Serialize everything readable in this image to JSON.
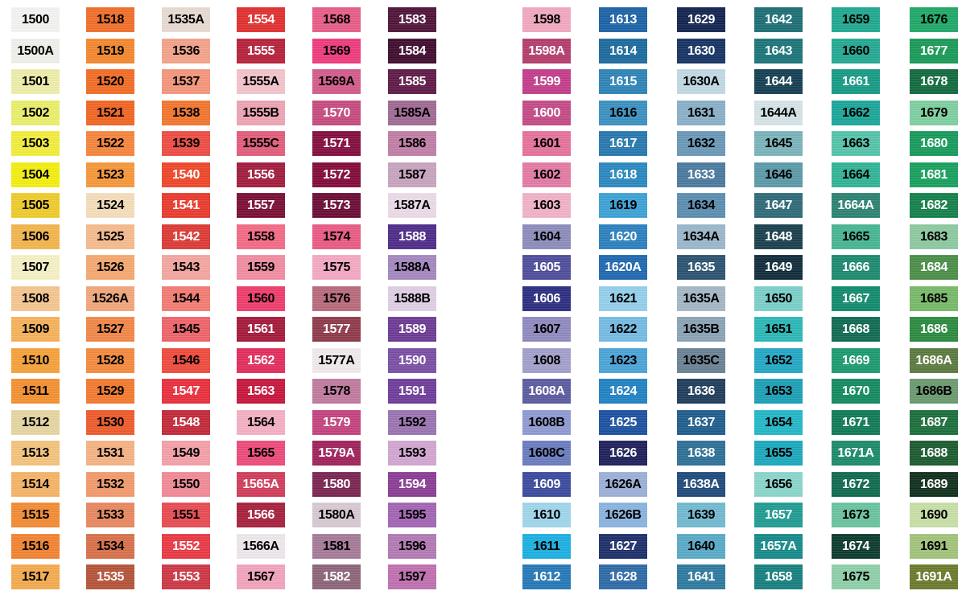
{
  "columns": [
    {
      "swatches": [
        {
          "code": "1500",
          "color": "#f4f4f2"
        },
        {
          "code": "1500A",
          "color": "#f1f1ec"
        },
        {
          "code": "1501",
          "color": "#eeeeaa"
        },
        {
          "code": "1502",
          "color": "#eaf06c"
        },
        {
          "code": "1503",
          "color": "#f2ee3c"
        },
        {
          "code": "1504",
          "color": "#f4ef0f"
        },
        {
          "code": "1505",
          "color": "#f0cc2a"
        },
        {
          "code": "1506",
          "color": "#f3b64c"
        },
        {
          "code": "1507",
          "color": "#f6f2c6"
        },
        {
          "code": "1508",
          "color": "#f6c690"
        },
        {
          "code": "1509",
          "color": "#f7b25a"
        },
        {
          "code": "1510",
          "color": "#f6a23a"
        },
        {
          "code": "1511",
          "color": "#f49130"
        },
        {
          "code": "1512",
          "color": "#e6d6a2"
        },
        {
          "code": "1513",
          "color": "#f4c47c"
        },
        {
          "code": "1514",
          "color": "#f6b466"
        },
        {
          "code": "1515",
          "color": "#f38b33"
        },
        {
          "code": "1516",
          "color": "#f38330"
        },
        {
          "code": "1517",
          "color": "#f5ab4f"
        }
      ]
    },
    {
      "swatches": [
        {
          "code": "1518",
          "color": "#f26e28"
        },
        {
          "code": "1519",
          "color": "#f4882e"
        },
        {
          "code": "1520",
          "color": "#f36c24"
        },
        {
          "code": "1521",
          "color": "#f26522"
        },
        {
          "code": "1522",
          "color": "#f7853c"
        },
        {
          "code": "1523",
          "color": "#f7973a"
        },
        {
          "code": "1524",
          "color": "#f6debb"
        },
        {
          "code": "1525",
          "color": "#f7bb8d"
        },
        {
          "code": "1526",
          "color": "#f6a870"
        },
        {
          "code": "1526A",
          "color": "#f2a77b"
        },
        {
          "code": "1527",
          "color": "#f28747"
        },
        {
          "code": "1528",
          "color": "#f48a3d"
        },
        {
          "code": "1529",
          "color": "#f47a2e"
        },
        {
          "code": "1530",
          "color": "#ef5a2a"
        },
        {
          "code": "1531",
          "color": "#f6b385"
        },
        {
          "code": "1532",
          "color": "#f39a6c"
        },
        {
          "code": "1533",
          "color": "#e88860"
        },
        {
          "code": "1534",
          "color": "#d9704a"
        },
        {
          "code": "1535",
          "color": "#b65238"
        }
      ]
    },
    {
      "swatches": [
        {
          "code": "1535A",
          "color": "#e9dbd3"
        },
        {
          "code": "1536",
          "color": "#f5a38a"
        },
        {
          "code": "1537",
          "color": "#f6967c"
        },
        {
          "code": "1538",
          "color": "#f3762e"
        },
        {
          "code": "1539",
          "color": "#ef4c44"
        },
        {
          "code": "1540",
          "color": "#ef4628"
        },
        {
          "code": "1541",
          "color": "#ea3a2c"
        },
        {
          "code": "1542",
          "color": "#dd3a34"
        },
        {
          "code": "1543",
          "color": "#f5a6a0"
        },
        {
          "code": "1544",
          "color": "#f47c74"
        },
        {
          "code": "1545",
          "color": "#f0636a"
        },
        {
          "code": "1546",
          "color": "#ee4b3c"
        },
        {
          "code": "1547",
          "color": "#ea2e3c"
        },
        {
          "code": "1548",
          "color": "#c42838"
        },
        {
          "code": "1549",
          "color": "#f5a0a8"
        },
        {
          "code": "1550",
          "color": "#f28a96"
        },
        {
          "code": "1551",
          "color": "#e94b52"
        },
        {
          "code": "1552",
          "color": "#ea3844"
        },
        {
          "code": "1553",
          "color": "#ce3644"
        }
      ]
    },
    {
      "swatches": [
        {
          "code": "1554",
          "color": "#e12f2e"
        },
        {
          "code": "1555",
          "color": "#b7203a"
        },
        {
          "code": "1555A",
          "color": "#f4c4cc"
        },
        {
          "code": "1555B",
          "color": "#eea4b4"
        },
        {
          "code": "1555C",
          "color": "#e35c7a"
        },
        {
          "code": "1556",
          "color": "#a21a3c"
        },
        {
          "code": "1557",
          "color": "#7a0c34"
        },
        {
          "code": "1558",
          "color": "#f46a86"
        },
        {
          "code": "1559",
          "color": "#f28ca2"
        },
        {
          "code": "1560",
          "color": "#ef3c6c"
        },
        {
          "code": "1561",
          "color": "#a5183a"
        },
        {
          "code": "1562",
          "color": "#e32c5c"
        },
        {
          "code": "1563",
          "color": "#c8143c"
        },
        {
          "code": "1564",
          "color": "#f6b0c4"
        },
        {
          "code": "1565",
          "color": "#ee4a7a"
        },
        {
          "code": "1565A",
          "color": "#d23c5a"
        },
        {
          "code": "1566",
          "color": "#a61f3b"
        },
        {
          "code": "1566A",
          "color": "#efe8ec"
        },
        {
          "code": "1567",
          "color": "#f3a4bd"
        }
      ]
    },
    {
      "swatches": [
        {
          "code": "1568",
          "color": "#e85c88"
        },
        {
          "code": "1569",
          "color": "#ef3a7e"
        },
        {
          "code": "1569A",
          "color": "#d45a8a"
        },
        {
          "code": "1570",
          "color": "#c64a7e"
        },
        {
          "code": "1571",
          "color": "#830c3e"
        },
        {
          "code": "1572",
          "color": "#820838"
        },
        {
          "code": "1573",
          "color": "#6b0a34"
        },
        {
          "code": "1574",
          "color": "#ea5a84"
        },
        {
          "code": "1575",
          "color": "#f6a8c4"
        },
        {
          "code": "1576",
          "color": "#b86a7a"
        },
        {
          "code": "1577",
          "color": "#8e3a4a"
        },
        {
          "code": "1577A",
          "color": "#f2eaec"
        },
        {
          "code": "1578",
          "color": "#c27a9e"
        },
        {
          "code": "1579",
          "color": "#c4427e"
        },
        {
          "code": "1579A",
          "color": "#a0205a"
        },
        {
          "code": "1580",
          "color": "#7a2450"
        },
        {
          "code": "1580A",
          "color": "#d8cad2"
        },
        {
          "code": "1581",
          "color": "#a57a98"
        },
        {
          "code": "1582",
          "color": "#8c6478"
        }
      ]
    },
    {
      "swatches": [
        {
          "code": "1583",
          "color": "#4e1238"
        },
        {
          "code": "1584",
          "color": "#3e0a2e"
        },
        {
          "code": "1585",
          "color": "#5e1846"
        },
        {
          "code": "1585A",
          "color": "#a06a94"
        },
        {
          "code": "1586",
          "color": "#c27ea6"
        },
        {
          "code": "1587",
          "color": "#c8a4c0"
        },
        {
          "code": "1587A",
          "color": "#ecdce8"
        },
        {
          "code": "1588",
          "color": "#4c2a88"
        },
        {
          "code": "1588A",
          "color": "#a488c0"
        },
        {
          "code": "1588B",
          "color": "#e0d0e6"
        },
        {
          "code": "1589",
          "color": "#6c3a94"
        },
        {
          "code": "1590",
          "color": "#7a4ea4"
        },
        {
          "code": "1591",
          "color": "#6e3c9a"
        },
        {
          "code": "1592",
          "color": "#9a74b2"
        },
        {
          "code": "1593",
          "color": "#d2a6d2"
        },
        {
          "code": "1594",
          "color": "#8a3c94"
        },
        {
          "code": "1595",
          "color": "#a264b4"
        },
        {
          "code": "1596",
          "color": "#b27ab4"
        },
        {
          "code": "1597",
          "color": "#c070b0"
        }
      ]
    },
    {
      "swatches": [
        {
          "code": "1598",
          "color": "#f2a8c0"
        },
        {
          "code": "1598A",
          "color": "#b43c6c"
        },
        {
          "code": "1599",
          "color": "#c43c8a"
        },
        {
          "code": "1600",
          "color": "#c44a86"
        },
        {
          "code": "1601",
          "color": "#e6729c"
        },
        {
          "code": "1602",
          "color": "#e47aa4"
        },
        {
          "code": "1603",
          "color": "#f2b2c8"
        },
        {
          "code": "1604",
          "color": "#8c8cbc"
        },
        {
          "code": "1605",
          "color": "#4e4c9a"
        },
        {
          "code": "1606",
          "color": "#2a2c80"
        },
        {
          "code": "1607",
          "color": "#8f8ac0"
        },
        {
          "code": "1608",
          "color": "#a2a0cc"
        },
        {
          "code": "1608A",
          "color": "#5a5aa0"
        },
        {
          "code": "1608B",
          "color": "#8f9ad2"
        },
        {
          "code": "1608C",
          "color": "#6a7cc0"
        },
        {
          "code": "1609",
          "color": "#3a4a9e"
        },
        {
          "code": "1610",
          "color": "#a0d6ec"
        },
        {
          "code": "1611",
          "color": "#1ab0e2"
        },
        {
          "code": "1612",
          "color": "#2478b8"
        }
      ]
    },
    {
      "swatches": [
        {
          "code": "1613",
          "color": "#1a62a6"
        },
        {
          "code": "1614",
          "color": "#1a6a9e"
        },
        {
          "code": "1615",
          "color": "#2c84b8"
        },
        {
          "code": "1616",
          "color": "#3a90c2"
        },
        {
          "code": "1617",
          "color": "#2678b0"
        },
        {
          "code": "1618",
          "color": "#2888c0"
        },
        {
          "code": "1619",
          "color": "#3ca2d6"
        },
        {
          "code": "1620",
          "color": "#2a80c0"
        },
        {
          "code": "1620A",
          "color": "#1e68b0"
        },
        {
          "code": "1621",
          "color": "#94d0ec"
        },
        {
          "code": "1622",
          "color": "#74bce4"
        },
        {
          "code": "1623",
          "color": "#4aa4d8"
        },
        {
          "code": "1624",
          "color": "#1e82c4"
        },
        {
          "code": "1625",
          "color": "#1a50a0"
        },
        {
          "code": "1626",
          "color": "#1c1e5a"
        },
        {
          "code": "1626A",
          "color": "#9cb0d8"
        },
        {
          "code": "1626B",
          "color": "#8ab4e0"
        },
        {
          "code": "1627",
          "color": "#1c2e6a"
        },
        {
          "code": "1628",
          "color": "#2c6aa6"
        }
      ]
    },
    {
      "swatches": [
        {
          "code": "1629",
          "color": "#10224e"
        },
        {
          "code": "1630",
          "color": "#143262"
        },
        {
          "code": "1630A",
          "color": "#c2dae4"
        },
        {
          "code": "1631",
          "color": "#8ab0c8"
        },
        {
          "code": "1632",
          "color": "#6a98b8"
        },
        {
          "code": "1633",
          "color": "#4a7a9e"
        },
        {
          "code": "1634",
          "color": "#5a8eb0"
        },
        {
          "code": "1634A",
          "color": "#9ab8cc"
        },
        {
          "code": "1635",
          "color": "#2a5270"
        },
        {
          "code": "1635A",
          "color": "#a4b8c6"
        },
        {
          "code": "1635B",
          "color": "#8aa4b6"
        },
        {
          "code": "1635C",
          "color": "#6a8294"
        },
        {
          "code": "1636",
          "color": "#1e3c5a"
        },
        {
          "code": "1637",
          "color": "#1e5c8c"
        },
        {
          "code": "1638",
          "color": "#2c7096"
        },
        {
          "code": "1638A",
          "color": "#1e4a7c"
        },
        {
          "code": "1639",
          "color": "#72bad0"
        },
        {
          "code": "1640",
          "color": "#58aac8"
        },
        {
          "code": "1641",
          "color": "#2c7a9e"
        }
      ]
    },
    {
      "swatches": [
        {
          "code": "1642",
          "color": "#1a6e74"
        },
        {
          "code": "1643",
          "color": "#1a7478"
        },
        {
          "code": "1644",
          "color": "#123e52"
        },
        {
          "code": "1644A",
          "color": "#d6e4e8"
        },
        {
          "code": "1645",
          "color": "#7ab4bc"
        },
        {
          "code": "1646",
          "color": "#5a9aa8"
        },
        {
          "code": "1647",
          "color": "#2e6a78"
        },
        {
          "code": "1648",
          "color": "#183e4c"
        },
        {
          "code": "1649",
          "color": "#0e2a3a"
        },
        {
          "code": "1650",
          "color": "#7ad0ca"
        },
        {
          "code": "1651",
          "color": "#2ab8b8"
        },
        {
          "code": "1652",
          "color": "#22a8c6"
        },
        {
          "code": "1653",
          "color": "#1aa0b6"
        },
        {
          "code": "1654",
          "color": "#22b8c8"
        },
        {
          "code": "1655",
          "color": "#1aa8be"
        },
        {
          "code": "1656",
          "color": "#8ad6cc"
        },
        {
          "code": "1657",
          "color": "#1e9c92"
        },
        {
          "code": "1657A",
          "color": "#148a8a"
        },
        {
          "code": "1658",
          "color": "#14807e"
        }
      ]
    },
    {
      "swatches": [
        {
          "code": "1659",
          "color": "#1ea890"
        },
        {
          "code": "1660",
          "color": "#22a892"
        },
        {
          "code": "1661",
          "color": "#149a84"
        },
        {
          "code": "1662",
          "color": "#1aa69a"
        },
        {
          "code": "1663",
          "color": "#54c4aa"
        },
        {
          "code": "1664",
          "color": "#30b496"
        },
        {
          "code": "1664A",
          "color": "#2a8272"
        },
        {
          "code": "1665",
          "color": "#46b692"
        },
        {
          "code": "1666",
          "color": "#1a8a6e"
        },
        {
          "code": "1667",
          "color": "#108a6c"
        },
        {
          "code": "1668",
          "color": "#0e6a52"
        },
        {
          "code": "1669",
          "color": "#1a9a70"
        },
        {
          "code": "1670",
          "color": "#128a60"
        },
        {
          "code": "1671",
          "color": "#0e7a56"
        },
        {
          "code": "1671A",
          "color": "#1a8a6a"
        },
        {
          "code": "1672",
          "color": "#0e6a4e"
        },
        {
          "code": "1673",
          "color": "#6ac49e"
        },
        {
          "code": "1674",
          "color": "#0a3a2c"
        },
        {
          "code": "1675",
          "color": "#8ed0a8"
        }
      ]
    },
    {
      "swatches": [
        {
          "code": "1676",
          "color": "#1ea868"
        },
        {
          "code": "1677",
          "color": "#189a58"
        },
        {
          "code": "1678",
          "color": "#106a3e"
        },
        {
          "code": "1679",
          "color": "#7ed0a0"
        },
        {
          "code": "1680",
          "color": "#169a5a"
        },
        {
          "code": "1681",
          "color": "#17a05c"
        },
        {
          "code": "1682",
          "color": "#12804a"
        },
        {
          "code": "1683",
          "color": "#8ccaa0"
        },
        {
          "code": "1684",
          "color": "#4a8e48"
        },
        {
          "code": "1685",
          "color": "#78ba68"
        },
        {
          "code": "1686",
          "color": "#2a8a3e"
        },
        {
          "code": "1686A",
          "color": "#5a7a3e"
        },
        {
          "code": "1686B",
          "color": "#6a9a70"
        },
        {
          "code": "1687",
          "color": "#1a6e3a"
        },
        {
          "code": "1688",
          "color": "#1a5a2e"
        },
        {
          "code": "1689",
          "color": "#0e2e1a"
        },
        {
          "code": "1690",
          "color": "#c8e0a6"
        },
        {
          "code": "1691",
          "color": "#a2c47a"
        },
        {
          "code": "1691A",
          "color": "#6a7a2a"
        }
      ]
    }
  ]
}
